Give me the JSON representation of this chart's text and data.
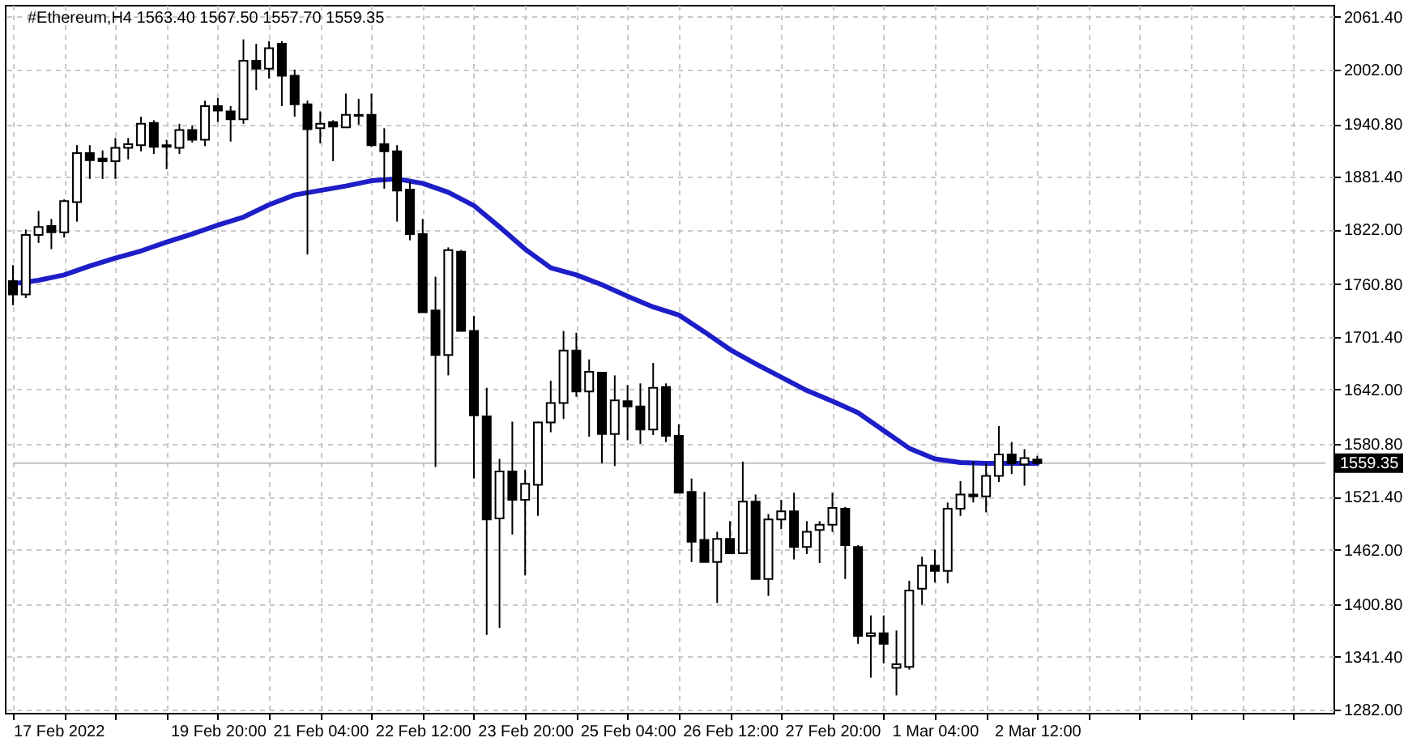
{
  "chart_data": {
    "type": "candlestick",
    "title": "#Ethereum,H4 1563.40 1567.50 1557.70 1559.35",
    "color": "#000000",
    "x": [
      "2022-02-17T04:00",
      "2022-02-17T08:00",
      "2022-02-17T12:00",
      "2022-02-17T16:00",
      "2022-02-17T20:00",
      "2022-02-18T00:00",
      "2022-02-18T04:00",
      "2022-02-18T08:00",
      "2022-02-18T12:00",
      "2022-02-18T16:00",
      "2022-02-18T20:00",
      "2022-02-19T00:00",
      "2022-02-19T04:00",
      "2022-02-19T08:00",
      "2022-02-19T12:00",
      "2022-02-19T16:00",
      "2022-02-19T20:00",
      "2022-02-20T00:00",
      "2022-02-20T04:00",
      "2022-02-20T08:00",
      "2022-02-20T12:00",
      "2022-02-20T16:00",
      "2022-02-20T20:00",
      "2022-02-21T00:00",
      "2022-02-21T04:00",
      "2022-02-21T08:00",
      "2022-02-21T12:00",
      "2022-02-21T16:00",
      "2022-02-21T20:00",
      "2022-02-22T00:00",
      "2022-02-22T04:00",
      "2022-02-22T08:00",
      "2022-02-22T12:00",
      "2022-02-22T16:00",
      "2022-02-22T20:00",
      "2022-02-23T00:00",
      "2022-02-23T04:00",
      "2022-02-23T08:00",
      "2022-02-23T12:00",
      "2022-02-23T16:00",
      "2022-02-23T20:00",
      "2022-02-24T00:00",
      "2022-02-24T04:00",
      "2022-02-24T08:00",
      "2022-02-24T12:00",
      "2022-02-24T16:00",
      "2022-02-24T20:00",
      "2022-02-25T00:00",
      "2022-02-25T04:00",
      "2022-02-25T08:00",
      "2022-02-25T12:00",
      "2022-02-25T16:00",
      "2022-02-25T20:00",
      "2022-02-26T00:00",
      "2022-02-26T04:00",
      "2022-02-26T08:00",
      "2022-02-26T12:00",
      "2022-02-26T16:00",
      "2022-02-26T20:00",
      "2022-02-27T00:00",
      "2022-02-27T04:00",
      "2022-02-27T08:00",
      "2022-02-27T12:00",
      "2022-02-27T16:00",
      "2022-02-27T20:00",
      "2022-02-28T00:00",
      "2022-02-28T04:00",
      "2022-02-28T08:00",
      "2022-02-28T12:00",
      "2022-02-28T16:00",
      "2022-02-28T20:00",
      "2022-03-01T00:00",
      "2022-03-01T04:00",
      "2022-03-01T08:00",
      "2022-03-01T12:00",
      "2022-03-01T16:00",
      "2022-03-01T20:00",
      "2022-03-02T00:00",
      "2022-03-02T04:00",
      "2022-03-02T08:00",
      "2022-03-02T12:00"
    ],
    "ohlc": [
      [
        1764,
        1782,
        1737,
        1749
      ],
      [
        1749,
        1822,
        1745,
        1816
      ],
      [
        1816,
        1843,
        1807,
        1825
      ],
      [
        1826,
        1834,
        1800,
        1819
      ],
      [
        1819,
        1856,
        1813,
        1854
      ],
      [
        1853,
        1917,
        1831,
        1908
      ],
      [
        1908,
        1917,
        1879,
        1900
      ],
      [
        1902,
        1911,
        1879,
        1899
      ],
      [
        1899,
        1925,
        1879,
        1914
      ],
      [
        1914,
        1925,
        1901,
        1918
      ],
      [
        1917,
        1949,
        1910,
        1941
      ],
      [
        1942,
        1945,
        1907,
        1915
      ],
      [
        1917,
        1923,
        1890,
        1915
      ],
      [
        1914,
        1941,
        1907,
        1934
      ],
      [
        1934,
        1939,
        1920,
        1923
      ],
      [
        1923,
        1967,
        1916,
        1961
      ],
      [
        1961,
        1970,
        1943,
        1956
      ],
      [
        1955,
        1961,
        1921,
        1946
      ],
      [
        1946,
        2036,
        1941,
        2012
      ],
      [
        2012,
        2031,
        1979,
        2003
      ],
      [
        2003,
        2034,
        1992,
        2026
      ],
      [
        2031,
        2034,
        1961,
        1995
      ],
      [
        1995,
        2002,
        1949,
        1963
      ],
      [
        1963,
        1967,
        1794,
        1935
      ],
      [
        1936,
        1955,
        1919,
        1941
      ],
      [
        1943,
        1945,
        1899,
        1938
      ],
      [
        1937,
        1975,
        1937,
        1951
      ],
      [
        1951,
        1969,
        1940,
        1950
      ],
      [
        1951,
        1975,
        1915,
        1917
      ],
      [
        1918,
        1936,
        1868,
        1910
      ],
      [
        1910,
        1917,
        1831,
        1866
      ],
      [
        1867,
        1876,
        1810,
        1817
      ],
      [
        1817,
        1834,
        1729,
        1729
      ],
      [
        1731,
        1769,
        1555,
        1681
      ],
      [
        1681,
        1802,
        1658,
        1799
      ],
      [
        1797,
        1799,
        1708,
        1708
      ],
      [
        1708,
        1725,
        1542,
        1613
      ],
      [
        1612,
        1644,
        1366,
        1496
      ],
      [
        1497,
        1564,
        1374,
        1550
      ],
      [
        1550,
        1606,
        1479,
        1518
      ],
      [
        1518,
        1552,
        1433,
        1536
      ],
      [
        1535,
        1606,
        1500,
        1605
      ],
      [
        1605,
        1652,
        1594,
        1627
      ],
      [
        1627,
        1708,
        1609,
        1686
      ],
      [
        1686,
        1706,
        1634,
        1640
      ],
      [
        1640,
        1676,
        1589,
        1662
      ],
      [
        1661,
        1662,
        1559,
        1592
      ],
      [
        1592,
        1658,
        1556,
        1630
      ],
      [
        1629,
        1647,
        1585,
        1623
      ],
      [
        1623,
        1649,
        1581,
        1597
      ],
      [
        1597,
        1672,
        1591,
        1644
      ],
      [
        1645,
        1649,
        1583,
        1590
      ],
      [
        1590,
        1603,
        1526,
        1526
      ],
      [
        1527,
        1542,
        1448,
        1471
      ],
      [
        1473,
        1527,
        1448,
        1448
      ],
      [
        1448,
        1482,
        1402,
        1474
      ],
      [
        1474,
        1494,
        1457,
        1458
      ],
      [
        1458,
        1561,
        1457,
        1516
      ],
      [
        1516,
        1524,
        1429,
        1429
      ],
      [
        1429,
        1502,
        1410,
        1496
      ],
      [
        1496,
        1518,
        1485,
        1505
      ],
      [
        1505,
        1526,
        1451,
        1465
      ],
      [
        1465,
        1494,
        1457,
        1482
      ],
      [
        1484,
        1494,
        1447,
        1490
      ],
      [
        1490,
        1526,
        1482,
        1509
      ],
      [
        1508,
        1510,
        1429,
        1467
      ],
      [
        1465,
        1467,
        1356,
        1365
      ],
      [
        1365,
        1388,
        1318,
        1368
      ],
      [
        1368,
        1388,
        1334,
        1356
      ],
      [
        1329,
        1371,
        1298,
        1333
      ],
      [
        1330,
        1427,
        1327,
        1416
      ],
      [
        1418,
        1454,
        1400,
        1444
      ],
      [
        1444,
        1462,
        1425,
        1438
      ],
      [
        1438,
        1515,
        1424,
        1508
      ],
      [
        1508,
        1539,
        1500,
        1524
      ],
      [
        1524,
        1561,
        1515,
        1522
      ],
      [
        1522,
        1559,
        1504,
        1545
      ],
      [
        1545,
        1601,
        1538,
        1569
      ],
      [
        1569,
        1583,
        1547,
        1559
      ],
      [
        1558,
        1575,
        1534,
        1565
      ],
      [
        1563.4,
        1567.5,
        1557.7,
        1559.35
      ]
    ],
    "series": [
      {
        "type": "line",
        "color": "#1e1ec8",
        "x": [
          "2022-02-17T04:00",
          "2022-02-17T12:00",
          "2022-02-17T20:00",
          "2022-02-18T04:00",
          "2022-02-18T12:00",
          "2022-02-18T20:00",
          "2022-02-19T04:00",
          "2022-02-19T12:00",
          "2022-02-19T20:00",
          "2022-02-20T04:00",
          "2022-02-20T12:00",
          "2022-02-20T20:00",
          "2022-02-21T04:00",
          "2022-02-21T12:00",
          "2022-02-21T20:00",
          "2022-02-22T04:00",
          "2022-02-22T12:00",
          "2022-02-22T20:00",
          "2022-02-23T04:00",
          "2022-02-23T12:00",
          "2022-02-23T20:00",
          "2022-02-24T04:00",
          "2022-02-24T12:00",
          "2022-02-24T20:00",
          "2022-02-25T04:00",
          "2022-02-25T12:00",
          "2022-02-25T20:00",
          "2022-02-26T04:00",
          "2022-02-26T12:00",
          "2022-02-26T20:00",
          "2022-02-27T04:00",
          "2022-02-27T12:00",
          "2022-02-27T20:00",
          "2022-02-28T04:00",
          "2022-02-28T12:00",
          "2022-02-28T20:00",
          "2022-03-01T04:00",
          "2022-03-01T12:00",
          "2022-03-01T20:00",
          "2022-03-02T04:00",
          "2022-03-02T12:00"
        ],
        "values": [
          1761,
          1765,
          1771,
          1781,
          1790,
          1798,
          1808,
          1817,
          1827,
          1836,
          1850,
          1861,
          1866,
          1871,
          1877,
          1879,
          1874,
          1864,
          1849,
          1825,
          1800,
          1779,
          1771,
          1760,
          1747,
          1735,
          1726,
          1707,
          1687,
          1671,
          1656,
          1641,
          1629,
          1616,
          1596,
          1576,
          1564,
          1560,
          1559,
          1559,
          1559
        ]
      }
    ],
    "xlim": [
      "2022-02-17T04:00",
      "2022-03-06T06:00"
    ],
    "xticks": [
      {
        "value": "2022-02-17T04:00",
        "label": "17 Feb 2022"
      },
      {
        "value": "2022-02-17T20:00",
        "label": null
      },
      {
        "value": "2022-02-18T12:00",
        "label": null
      },
      {
        "value": "2022-02-19T04:00",
        "label": null
      },
      {
        "value": "2022-02-19T20:00",
        "label": "19 Feb 20:00"
      },
      {
        "value": "2022-02-20T12:00",
        "label": null
      },
      {
        "value": "2022-02-21T04:00",
        "label": "21 Feb 04:00"
      },
      {
        "value": "2022-02-21T20:00",
        "label": null
      },
      {
        "value": "2022-02-22T12:00",
        "label": "22 Feb 12:00"
      },
      {
        "value": "2022-02-23T04:00",
        "label": null
      },
      {
        "value": "2022-02-23T20:00",
        "label": "23 Feb 20:00"
      },
      {
        "value": "2022-02-24T12:00",
        "label": null
      },
      {
        "value": "2022-02-25T04:00",
        "label": "25 Feb 04:00"
      },
      {
        "value": "2022-02-25T20:00",
        "label": null
      },
      {
        "value": "2022-02-26T12:00",
        "label": "26 Feb 12:00"
      },
      {
        "value": "2022-02-27T04:00",
        "label": null
      },
      {
        "value": "2022-02-27T20:00",
        "label": "27 Feb 20:00"
      },
      {
        "value": "2022-02-28T12:00",
        "label": null
      },
      {
        "value": "2022-03-01T04:00",
        "label": "1 Mar 04:00"
      },
      {
        "value": "2022-03-01T20:00",
        "label": null
      },
      {
        "value": "2022-03-02T12:00",
        "label": "2 Mar 12:00"
      },
      {
        "value": "2022-03-03T04:00",
        "label": null
      },
      {
        "value": "2022-03-03T20:00",
        "label": null
      },
      {
        "value": "2022-03-04T12:00",
        "label": null
      },
      {
        "value": "2022-03-05T04:00",
        "label": null
      },
      {
        "value": "2022-03-05T20:00",
        "label": null
      }
    ],
    "ylim": [
      1278.4,
      2074.8
    ],
    "yticks": [
      {
        "value": 2061.4,
        "label": "2061.40"
      },
      {
        "value": 2002,
        "label": "2002.00"
      },
      {
        "value": 1940.8,
        "label": "1940.80"
      },
      {
        "value": 1881.4,
        "label": "1881.40"
      },
      {
        "value": 1822,
        "label": "1822.00"
      },
      {
        "value": 1760.8,
        "label": "1760.80"
      },
      {
        "value": 1701.4,
        "label": "1701.40"
      },
      {
        "value": 1642,
        "label": "1642.00"
      },
      {
        "value": 1580.8,
        "label": "1580.80"
      },
      {
        "value": 1521.4,
        "label": "1521.40"
      },
      {
        "value": 1462,
        "label": "1462.00"
      },
      {
        "value": 1400.8,
        "label": "1400.80"
      },
      {
        "value": 1341.4,
        "label": "1341.40"
      },
      {
        "value": 1282,
        "label": "1282.00"
      }
    ],
    "grid": true,
    "ref_lines": [
      {
        "axis": "y",
        "value": 1559.35,
        "label": "1559.35",
        "color": "#c0c0c0"
      }
    ]
  }
}
